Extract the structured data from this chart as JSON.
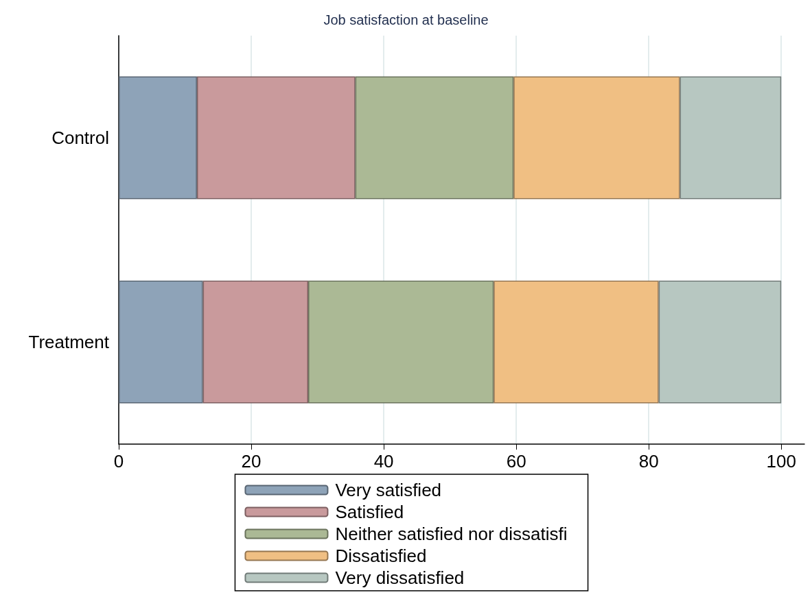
{
  "chart_data": {
    "type": "bar",
    "orientation": "horizontal",
    "stacked": true,
    "title": "Job satisfaction at baseline",
    "categories": [
      "Control",
      "Treatment"
    ],
    "series": [
      {
        "name": "Very satisfied",
        "color": "#8ea3b8",
        "values": [
          11.8,
          12.7
        ]
      },
      {
        "name": "Satisfied",
        "color": "#c99a9c",
        "values": [
          23.9,
          15.9
        ]
      },
      {
        "name": "Neither satisfied nor dissatisfi",
        "color": "#abb995",
        "values": [
          23.9,
          28.0
        ]
      },
      {
        "name": "Dissatisfied",
        "color": "#f0bf83",
        "values": [
          25.1,
          24.9
        ]
      },
      {
        "name": "Very dissatisfied",
        "color": "#b7c7c1",
        "values": [
          15.3,
          18.5
        ]
      }
    ],
    "xlim": [
      0,
      103.5
    ],
    "xticks": [
      0,
      20,
      40,
      60,
      80,
      100
    ],
    "grid": "x",
    "legend": "bottom"
  }
}
